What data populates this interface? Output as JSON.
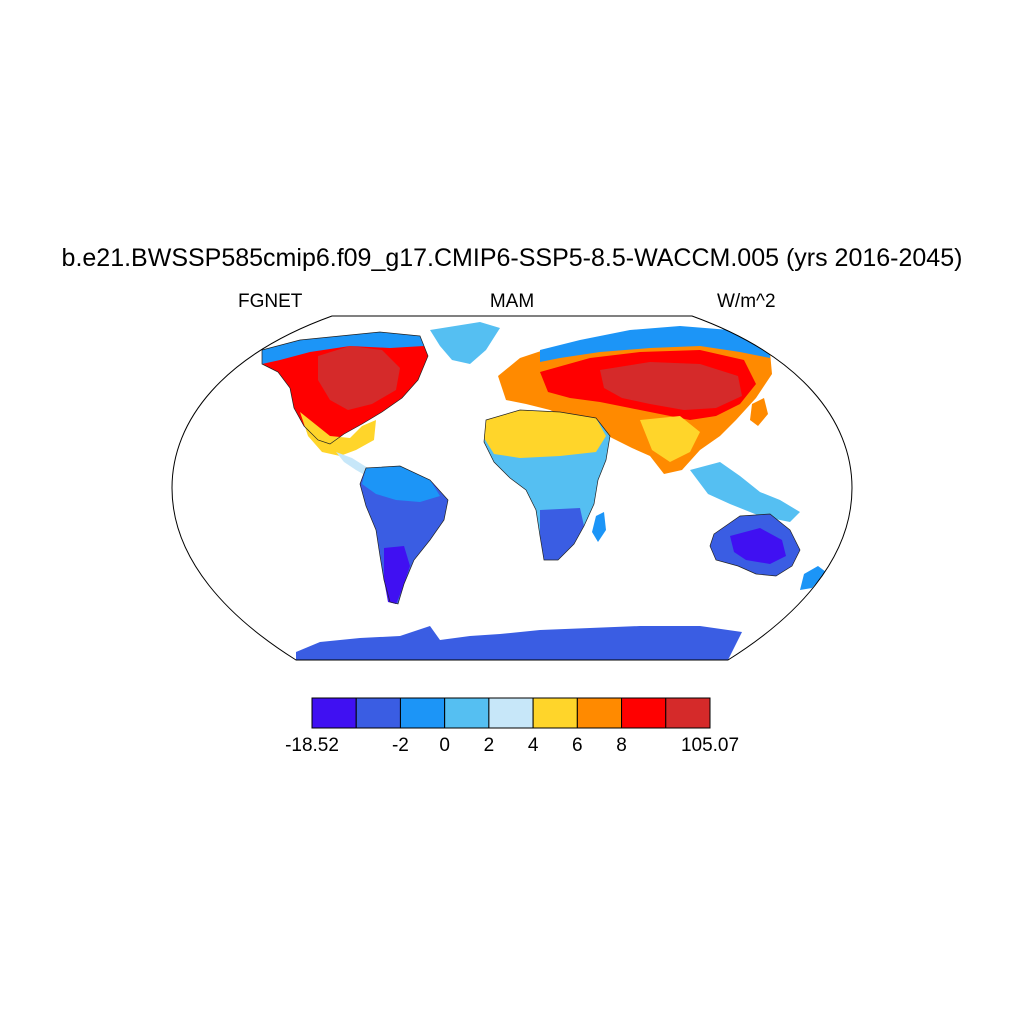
{
  "map": {
    "title": "b.e21.BWSSP585cmip6.f09_g17.CMIP6-SSP5-8.5-WACCM.005 (yrs 2016-2045)",
    "variable": "FGNET",
    "season": "MAM",
    "units": "W/m^2",
    "projection": "robinson",
    "coastlines": true
  },
  "colorbar": {
    "colors": [
      "#4010f2",
      "#3a5de3",
      "#1c95f7",
      "#55bff2",
      "#c7e7f9",
      "#ffd52a",
      "#ff8a00",
      "#ff0000",
      "#d52a2a"
    ],
    "labels": [
      "-18.52",
      "",
      "-2",
      "0",
      "2",
      "4",
      "6",
      "8",
      "",
      "105.07"
    ]
  }
}
